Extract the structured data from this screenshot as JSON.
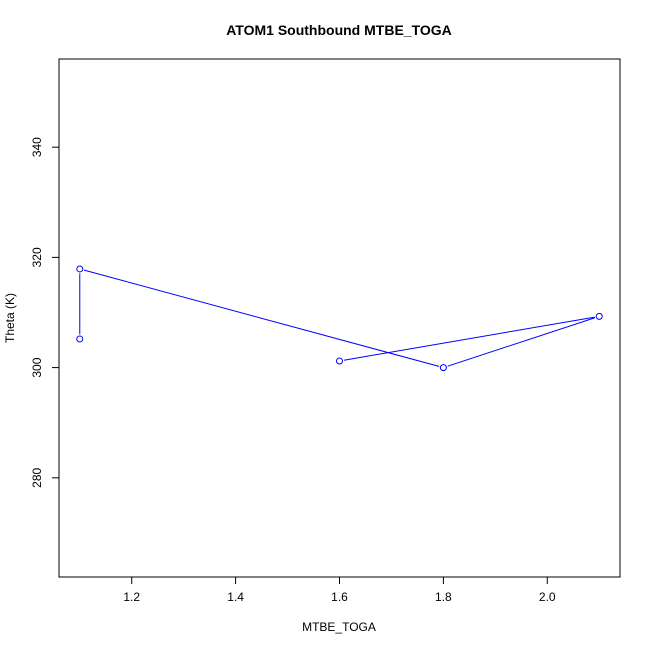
{
  "chart_data": {
    "type": "line",
    "title": "ATOM1 Southbound MTBE_TOGA",
    "xlabel": "MTBE_TOGA",
    "ylabel": "Theta (K)",
    "xlim": [
      1.06,
      2.14
    ],
    "ylim": [
      262,
      356
    ],
    "x_ticks": [
      1.2,
      1.4,
      1.6,
      1.8,
      2.0
    ],
    "x_tick_labels": [
      "1.2",
      "1.4",
      "1.6",
      "1.8",
      "2.0"
    ],
    "y_ticks": [
      280,
      300,
      320,
      340
    ],
    "y_tick_labels": [
      "280",
      "300",
      "320",
      "340"
    ],
    "grid": false,
    "series": [
      {
        "x": [
          1.1,
          1.1,
          1.8,
          2.1,
          1.6
        ],
        "y": [
          305.2,
          317.9,
          300.0,
          309.3,
          301.2
        ],
        "color": "#0000ff",
        "marker": "open-circle"
      }
    ]
  }
}
